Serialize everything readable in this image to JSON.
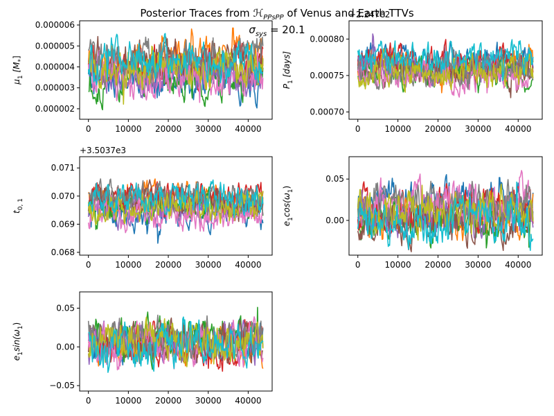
{
  "figure": {
    "title": "Posterior Traces from ℋ_{PPsPP} of Venus and Earth TTVs",
    "title_parts": {
      "prefix": "Posterior Traces from ",
      "symbol": "ℋ",
      "subscript": "PPsPP",
      "suffix": " of Venus and Earth TTVs"
    },
    "subtitle": "σ_{sys} = 20.1",
    "subtitle_parts": {
      "symbol": "σ",
      "subscript": "sys",
      "suffix": " = 20.1"
    }
  },
  "palette": [
    "#1f77b4",
    "#ff7f0e",
    "#2ca02c",
    "#d62728",
    "#9467bd",
    "#8c564b",
    "#e377c2",
    "#7f7f7f",
    "#bcbd22",
    "#17becf"
  ],
  "chart_data": [
    {
      "type": "line",
      "id": "mu1",
      "ylabel": "μ₁ [M★]",
      "ylabel_parts": {
        "main": "μ",
        "sub": "1",
        "rest": " [M",
        "rest_sub": "*",
        "end": "]"
      },
      "offset_text": "",
      "xlim": [
        -2200,
        46000
      ],
      "ylim": [
        1.5e-06,
        6.2e-06
      ],
      "xticks": [
        0,
        10000,
        20000,
        30000,
        40000
      ],
      "xticklabels": [
        "0",
        "10000",
        "20000",
        "30000",
        "40000"
      ],
      "yticks": [
        2e-06,
        3e-06,
        4e-06,
        5e-06,
        6e-06
      ],
      "yticklabels": [
        "0.000002",
        "0.000003",
        "0.000004",
        "0.000005",
        "0.000006"
      ],
      "n_walkers": 10,
      "x_range": [
        0,
        43700
      ],
      "walker_center_range": [
        3.3e-06,
        4.5e-06
      ],
      "walker_spread": 8e-07,
      "data_min": 1.7e-06,
      "data_max": 5.9e-06
    },
    {
      "type": "line",
      "id": "P1",
      "ylabel": "P₁ [days]",
      "ylabel_parts": {
        "main": "P",
        "sub": "1",
        "rest": " [days]",
        "rest_sub": "",
        "end": ""
      },
      "offset_text": "+2.247e2",
      "xlim": [
        -2200,
        46000
      ],
      "ylim": [
        0.00069,
        0.000825
      ],
      "xticks": [
        0,
        10000,
        20000,
        30000,
        40000
      ],
      "xticklabels": [
        "0",
        "10000",
        "20000",
        "30000",
        "40000"
      ],
      "yticks": [
        0.0007,
        0.00075,
        0.0008
      ],
      "yticklabels": [
        "0.00070",
        "0.00075",
        "0.00080"
      ],
      "n_walkers": 10,
      "x_range": [
        0,
        43700
      ],
      "walker_center_range": [
        0.000745,
        0.000775
      ],
      "walker_spread": 1.8e-05,
      "data_min": 0.000695,
      "data_max": 0.00082
    },
    {
      "type": "line",
      "id": "t01",
      "ylabel": "t₀,₁",
      "ylabel_parts": {
        "main": "t",
        "sub": "0, 1",
        "rest": "",
        "rest_sub": "",
        "end": ""
      },
      "offset_text": "+3.5037e3",
      "xlim": [
        -2200,
        46000
      ],
      "ylim": [
        0.0679,
        0.0714
      ],
      "xticks": [
        0,
        10000,
        20000,
        30000,
        40000
      ],
      "xticklabels": [
        "0",
        "10000",
        "20000",
        "30000",
        "40000"
      ],
      "yticks": [
        0.068,
        0.069,
        0.07,
        0.071
      ],
      "yticklabels": [
        "0.068",
        "0.069",
        "0.070",
        "0.071"
      ],
      "n_walkers": 10,
      "x_range": [
        0,
        43700
      ],
      "walker_center_range": [
        0.0692,
        0.07
      ],
      "walker_spread": 0.00045,
      "data_min": 0.0681,
      "data_max": 0.0712
    },
    {
      "type": "line",
      "id": "ecos",
      "ylabel": "e₁cos(ω₁)",
      "ylabel_parts": {
        "main": "e",
        "sub": "1",
        "rest": "cos(ω",
        "rest_sub": "1",
        "end": ")"
      },
      "offset_text": "",
      "xlim": [
        -2200,
        46000
      ],
      "ylim": [
        -0.042,
        0.077
      ],
      "xticks": [
        0,
        10000,
        20000,
        30000,
        40000
      ],
      "xticklabels": [
        "0",
        "10000",
        "20000",
        "30000",
        "40000"
      ],
      "yticks": [
        0.0,
        0.05
      ],
      "yticklabels": [
        "0.00",
        "0.05"
      ],
      "n_walkers": 10,
      "x_range": [
        0,
        43700
      ],
      "walker_center_range": [
        -0.005,
        0.02
      ],
      "walker_spread": 0.022,
      "data_min": -0.038,
      "data_max": 0.073
    },
    {
      "type": "line",
      "id": "esin",
      "ylabel": "e₁sin(ω₁)",
      "ylabel_parts": {
        "main": "e",
        "sub": "1",
        "rest": "sin(ω",
        "rest_sub": "1",
        "end": ")"
      },
      "offset_text": "",
      "xlim": [
        -2200,
        46000
      ],
      "ylim": [
        -0.057,
        0.071
      ],
      "xticks": [
        0,
        10000,
        20000,
        30000,
        40000
      ],
      "xticklabels": [
        "0",
        "10000",
        "20000",
        "30000",
        "40000"
      ],
      "yticks": [
        -0.05,
        0.0,
        0.05
      ],
      "yticklabels": [
        "−0.05",
        "0.00",
        "0.05"
      ],
      "n_walkers": 10,
      "x_range": [
        0,
        43700
      ],
      "walker_center_range": [
        -0.005,
        0.015
      ],
      "walker_spread": 0.022,
      "data_min": -0.048,
      "data_max": 0.065
    }
  ]
}
